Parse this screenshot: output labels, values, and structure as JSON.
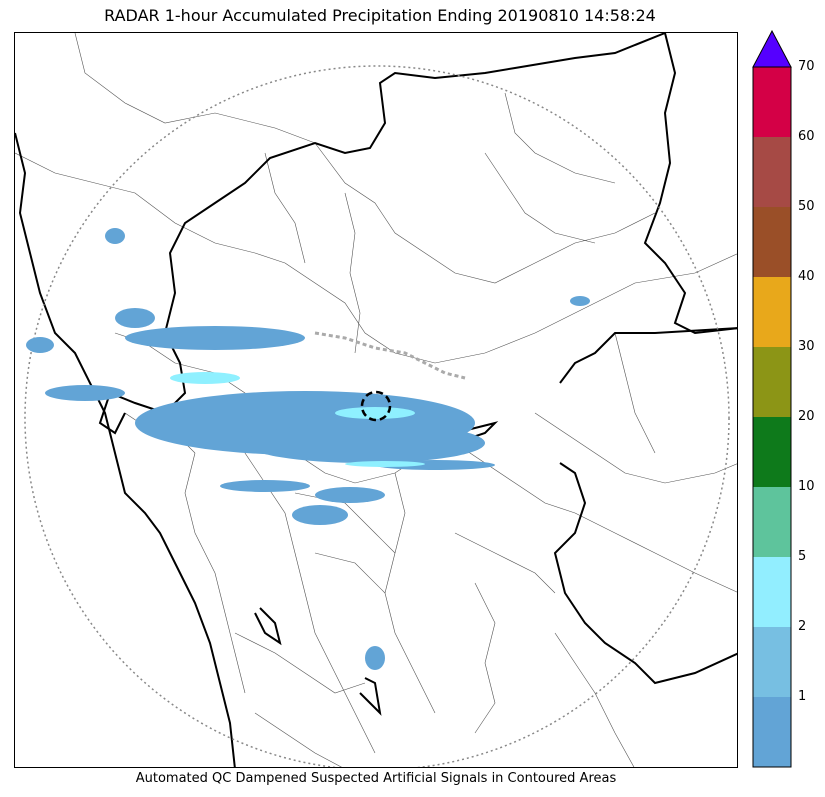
{
  "title": "RADAR 1-hour Accumulated Precipitation Ending 20190810 14:58:24",
  "footer": "Automated QC Dampened Suspected Artificial Signals in Contoured Areas",
  "colorbar": {
    "labels": [
      "1",
      "2",
      "5",
      "10",
      "20",
      "30",
      "40",
      "50",
      "60",
      "70"
    ],
    "extend_color": "#5500ff",
    "bins": [
      {
        "color": "#62a4d6"
      },
      {
        "color": "#77bfe2"
      },
      {
        "color": "#92eeff"
      },
      {
        "color": "#5ec49c"
      },
      {
        "color": "#0e7a1b"
      },
      {
        "color": "#8c9516"
      },
      {
        "color": "#e8a81b"
      },
      {
        "color": "#9a4f28"
      },
      {
        "color": "#a64a45"
      },
      {
        "color": "#d40046"
      }
    ]
  },
  "colors": {
    "precip_light": "#62a4d6",
    "precip_medium": "#8ff0ff",
    "range_ring": "#888888",
    "state_border": "#000000",
    "district_border": "#555555",
    "qc_contour": "#aaaaaa"
  }
}
